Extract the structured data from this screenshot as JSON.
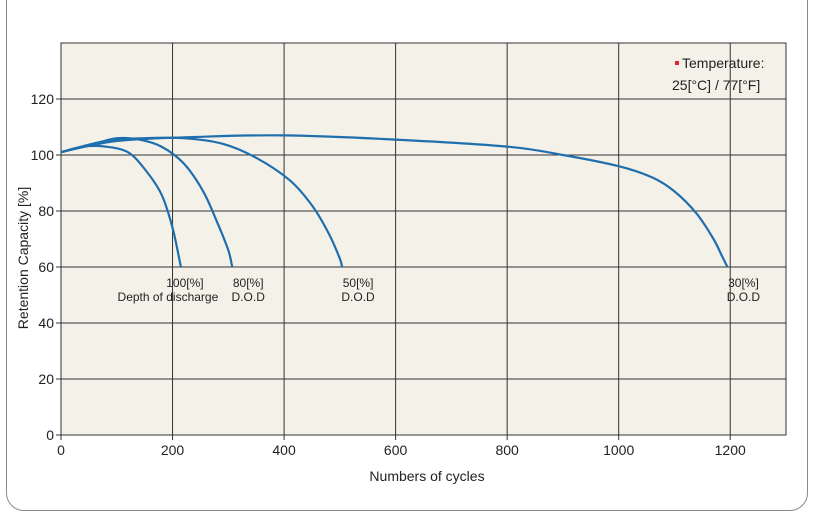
{
  "chart_data": {
    "type": "line",
    "title": "",
    "xlabel": "Numbers of cycles",
    "ylabel": "Retention Capacity [%]",
    "xlim": [
      0,
      1300
    ],
    "ylim": [
      0,
      140
    ],
    "x_ticks": [
      "0",
      "200",
      "400",
      "600",
      "800",
      "1000",
      "1200"
    ],
    "y_ticks": [
      "0",
      "20",
      "40",
      "60",
      "80",
      "100",
      "120"
    ],
    "grid": true,
    "temperature_note": {
      "line1": "Temperature:",
      "line2": "25[°C] / 77[°F]"
    },
    "colors": {
      "series": "#1f6fae",
      "plot_bg": "#f4f1e8",
      "grid": "#333333",
      "marker": "#e0242a"
    },
    "series": [
      {
        "label_line1": "100[%]",
        "label_line2": "Depth of discharge",
        "points": [
          [
            0,
            101
          ],
          [
            40,
            103
          ],
          [
            80,
            103
          ],
          [
            120,
            101
          ],
          [
            150,
            95
          ],
          [
            180,
            86
          ],
          [
            200,
            74
          ],
          [
            215,
            60
          ]
        ]
      },
      {
        "label_line1": "80[%]",
        "label_line2": "D.O.D",
        "points": [
          [
            0,
            101
          ],
          [
            60,
            104
          ],
          [
            100,
            106
          ],
          [
            140,
            105.5
          ],
          [
            180,
            103
          ],
          [
            220,
            97
          ],
          [
            255,
            87
          ],
          [
            280,
            76
          ],
          [
            300,
            66
          ],
          [
            307,
            60
          ]
        ]
      },
      {
        "label_line1": "50[%]",
        "label_line2": "D.O.D",
        "points": [
          [
            0,
            101
          ],
          [
            80,
            105
          ],
          [
            150,
            106
          ],
          [
            220,
            106
          ],
          [
            290,
            104
          ],
          [
            350,
            99
          ],
          [
            410,
            91
          ],
          [
            450,
            82
          ],
          [
            480,
            72
          ],
          [
            500,
            63
          ],
          [
            504,
            60
          ]
        ]
      },
      {
        "label_line1": "30[%]",
        "label_line2": "D.O.D",
        "points": [
          [
            0,
            101
          ],
          [
            100,
            105
          ],
          [
            250,
            106.5
          ],
          [
            400,
            107
          ],
          [
            600,
            105.5
          ],
          [
            800,
            103
          ],
          [
            900,
            100
          ],
          [
            1000,
            96
          ],
          [
            1060,
            92
          ],
          [
            1100,
            87
          ],
          [
            1140,
            79
          ],
          [
            1170,
            70
          ],
          [
            1185,
            64
          ],
          [
            1195,
            60
          ]
        ]
      }
    ]
  }
}
